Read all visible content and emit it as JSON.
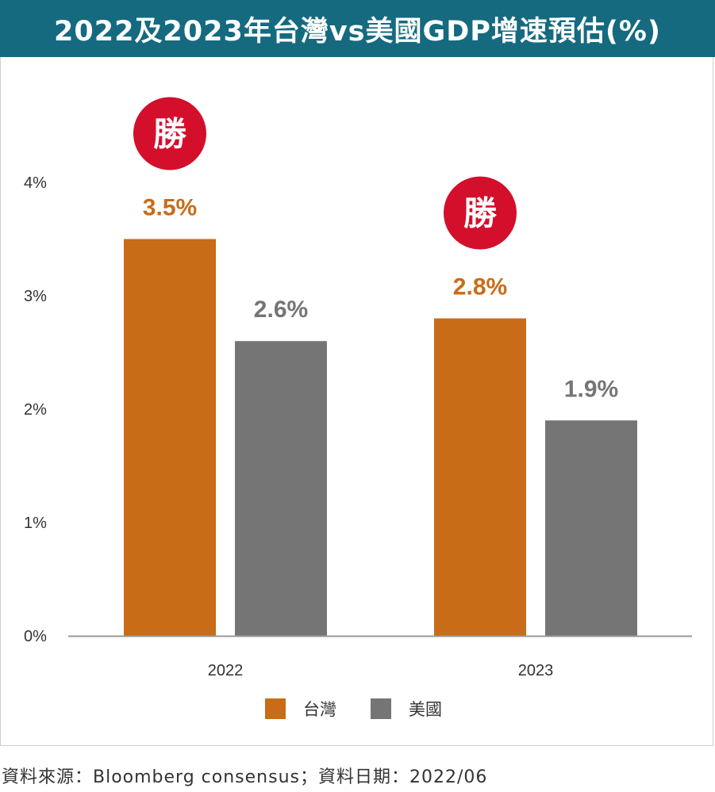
{
  "colors": {
    "header_bg": "#156a80",
    "taiwan": "#c86c17",
    "usa": "#757575",
    "badge": "#d40f2c",
    "axis": "#999999"
  },
  "chart_data": {
    "type": "bar",
    "title": "2022及2023年台灣vs美國GDP增速預估(%)",
    "categories": [
      "2022",
      "2023"
    ],
    "series": [
      {
        "name": "台灣",
        "values": [
          3.5,
          2.8
        ],
        "labels": [
          "3.5%",
          "2.8%"
        ],
        "color": "#c86c17"
      },
      {
        "name": "美國",
        "values": [
          2.6,
          1.9
        ],
        "labels": [
          "2.6%",
          "1.9%"
        ],
        "color": "#757575"
      }
    ],
    "ylim": [
      0,
      4
    ],
    "yticks": [
      0,
      1,
      2,
      3,
      4
    ],
    "ytick_labels": [
      "0%",
      "1%",
      "2%",
      "3%",
      "4%"
    ],
    "xlabel": "",
    "ylabel": "",
    "grid": false,
    "legend_position": "bottom-center",
    "annotations": [
      {
        "text": "勝",
        "category": "2022",
        "series": "台灣"
      },
      {
        "text": "勝",
        "category": "2023",
        "series": "台灣"
      }
    ]
  },
  "source_note": "資料來源：Bloomberg consensus；資料日期：2022/06"
}
